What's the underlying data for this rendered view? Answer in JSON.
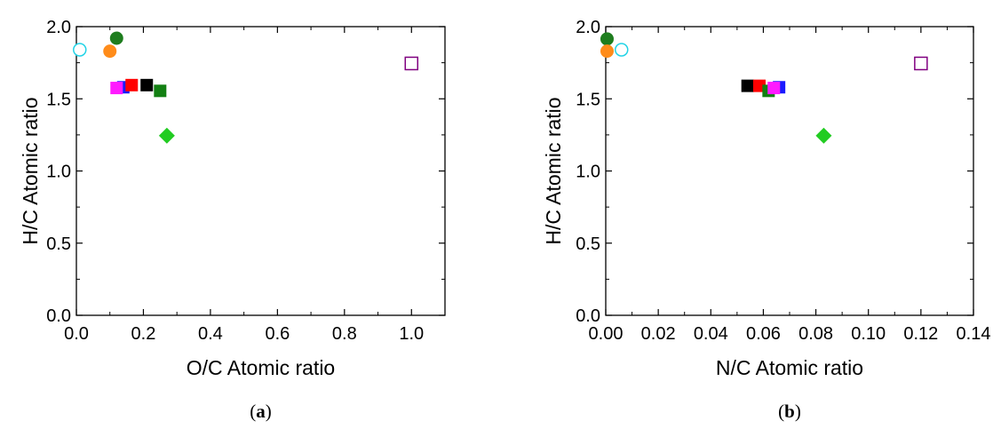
{
  "chart_data": [
    {
      "type": "scatter",
      "panel_label": {
        "open": "(",
        "letter": "a",
        "close": ")"
      },
      "xlabel": "O/C Atomic ratio",
      "ylabel": "H/C Atomic ratio",
      "xlim": [
        0.0,
        1.1
      ],
      "ylim": [
        0.0,
        2.0
      ],
      "xticks": [
        "0.0",
        "0.2",
        "0.4",
        "0.6",
        "0.8",
        "1.0"
      ],
      "yticks": [
        "0.0",
        "0.5",
        "1.0",
        "1.5",
        "2.0"
      ],
      "grid": false,
      "points": [
        {
          "x": 0.01,
          "y": 1.84,
          "marker": "circle-open",
          "color": "#22d3e6"
        },
        {
          "x": 0.1,
          "y": 1.83,
          "marker": "circle",
          "color": "#ff8c1a"
        },
        {
          "x": 0.12,
          "y": 1.92,
          "marker": "circle",
          "color": "#1e7d1e"
        },
        {
          "x": 0.14,
          "y": 1.58,
          "marker": "square",
          "color": "#1a1aff"
        },
        {
          "x": 0.12,
          "y": 1.575,
          "marker": "square",
          "color": "#ff1aff"
        },
        {
          "x": 0.165,
          "y": 1.595,
          "marker": "square",
          "color": "#ff0000"
        },
        {
          "x": 0.21,
          "y": 1.595,
          "marker": "square",
          "color": "#000000"
        },
        {
          "x": 0.25,
          "y": 1.555,
          "marker": "square",
          "color": "#138013"
        },
        {
          "x": 0.27,
          "y": 1.245,
          "marker": "diamond",
          "color": "#22cc22"
        },
        {
          "x": 1.0,
          "y": 1.745,
          "marker": "square-open",
          "color": "#800080"
        }
      ]
    },
    {
      "type": "scatter",
      "panel_label": {
        "open": "(",
        "letter": "b",
        "close": ")"
      },
      "xlabel": "N/C Atomic ratio",
      "ylabel": "H/C Atomic ratio",
      "xlim": [
        0.0,
        0.14
      ],
      "ylim": [
        0.0,
        2.0
      ],
      "xticks": [
        "0.00",
        "0.02",
        "0.04",
        "0.06",
        "0.08",
        "0.10",
        "0.12",
        "0.14"
      ],
      "yticks": [
        "0.0",
        "0.5",
        "1.0",
        "1.5",
        "2.0"
      ],
      "grid": false,
      "points": [
        {
          "x": 0.0005,
          "y": 1.915,
          "marker": "circle",
          "color": "#1e7d1e"
        },
        {
          "x": 0.0005,
          "y": 1.83,
          "marker": "circle",
          "color": "#ff8c1a"
        },
        {
          "x": 0.006,
          "y": 1.84,
          "marker": "circle-open",
          "color": "#22d3e6"
        },
        {
          "x": 0.054,
          "y": 1.59,
          "marker": "square",
          "color": "#000000"
        },
        {
          "x": 0.0585,
          "y": 1.59,
          "marker": "square",
          "color": "#ff0000"
        },
        {
          "x": 0.066,
          "y": 1.58,
          "marker": "square",
          "color": "#1a1aff"
        },
        {
          "x": 0.062,
          "y": 1.555,
          "marker": "square",
          "color": "#138013"
        },
        {
          "x": 0.064,
          "y": 1.575,
          "marker": "square",
          "color": "#ff1aff"
        },
        {
          "x": 0.083,
          "y": 1.245,
          "marker": "diamond",
          "color": "#22cc22"
        },
        {
          "x": 0.12,
          "y": 1.745,
          "marker": "square-open",
          "color": "#800080"
        }
      ]
    }
  ]
}
